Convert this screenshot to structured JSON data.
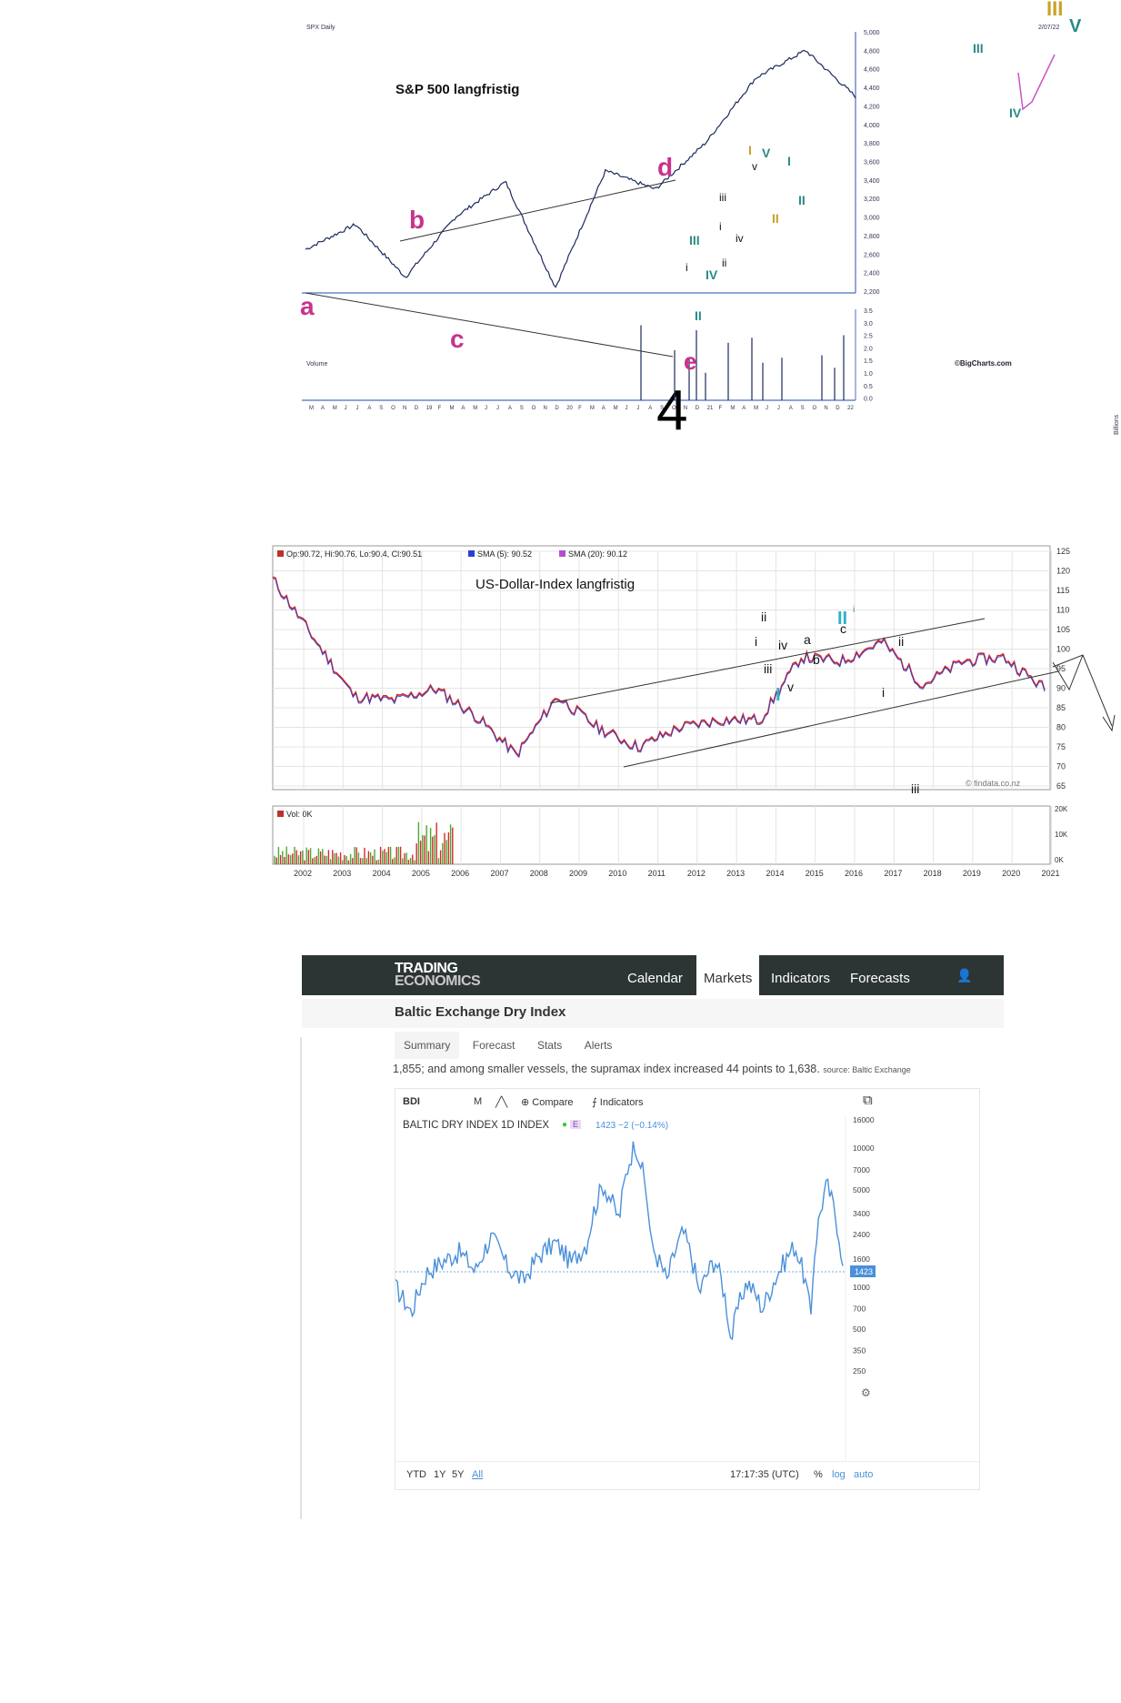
{
  "spx": {
    "header_left": "SPX Daily",
    "title": "S&P 500 langfristig",
    "date_label": "2/07/22",
    "volume_label": "Volume",
    "credit": "©BigCharts.com",
    "volume_unit": "Billions",
    "big_number": "4",
    "corner_labels": [
      "III",
      "V"
    ],
    "y_ticks": [
      "5,000",
      "4,800",
      "4,600",
      "4,400",
      "4,200",
      "4,000",
      "3,800",
      "3,600",
      "3,400",
      "3,200",
      "3,000",
      "2,800",
      "2,600",
      "2,400",
      "2,200"
    ],
    "vol_ticks": [
      "3.5",
      "3.0",
      "2.5",
      "2.0",
      "1.5",
      "1.0",
      "0.5",
      "0.0"
    ],
    "x_ticks": [
      "M",
      "A",
      "M",
      "J",
      "J",
      "A",
      "S",
      "O",
      "N",
      "D",
      "19",
      "F",
      "M",
      "A",
      "M",
      "J",
      "J",
      "A",
      "S",
      "O",
      "N",
      "D",
      "20",
      "F",
      "M",
      "A",
      "M",
      "J",
      "J",
      "A",
      "S",
      "O",
      "N",
      "D",
      "21",
      "F",
      "M",
      "A",
      "M",
      "J",
      "J",
      "A",
      "S",
      "O",
      "N",
      "D",
      "22"
    ],
    "wave_labels": {
      "a": "a",
      "b": "b",
      "c": "c",
      "d": "d",
      "e": "e",
      "I": "I",
      "II": "II",
      "III": "III",
      "IV": "IV",
      "V": "V",
      "i": "i",
      "ii": "ii",
      "iii": "iii",
      "iv": "iv",
      "v": "v",
      "w_i": "i",
      "w_ii": "ii",
      "w_iii": "iii",
      "w_iv": "iv",
      "w_v": "v",
      "g_I": "I",
      "g_II": "II"
    }
  },
  "usd": {
    "legend": [
      "Op:90.72, Hi:90.76, Lo:90.4, Cl:90.51",
      "SMA (5): 90.52",
      "SMA (20): 90.12"
    ],
    "title": "US-Dollar-Index   langfristig",
    "vol_label": "Vol: 0K",
    "credit": "© findata.co.nz",
    "y_ticks": [
      "125",
      "120",
      "115",
      "110",
      "105",
      "100",
      "95",
      "90",
      "85",
      "80",
      "75",
      "70",
      "65"
    ],
    "vol_ticks": [
      "20K",
      "10K",
      "0K"
    ],
    "x_ticks": [
      "2002",
      "2003",
      "2004",
      "2005",
      "2006",
      "2007",
      "2008",
      "2009",
      "2010",
      "2011",
      "2012",
      "2013",
      "2014",
      "2015",
      "2016",
      "2017",
      "2018",
      "2019",
      "2020",
      "2021"
    ],
    "wave_labels": {
      "ii": "ii",
      "i": "i",
      "iv": "iv",
      "iii": "iii",
      "v": "v",
      "a": "a",
      "b": "b",
      "c": "c",
      "II": "II",
      "I": "I",
      "ii_r": "ii",
      "i_r": "i",
      "iii_r": "iii",
      "i_small": "i"
    },
    "colors": {
      "sma5": "#2b3fd6",
      "sma20": "#b04fd0",
      "price": "#d22a2a"
    }
  },
  "te": {
    "logo_top": "TRADING",
    "logo_bottom": "ECONOMICS",
    "menu": [
      "Calendar",
      "Markets",
      "Indicators",
      "Forecasts"
    ],
    "active_menu": "Markets",
    "page_title": "Baltic Exchange Dry Index",
    "tabs": [
      "Summary",
      "Forecast",
      "Stats",
      "Alerts"
    ],
    "description": "1,855; and among smaller vessels, the supramax index increased 44 points to 1,638.",
    "source": "source: Baltic Exchange",
    "toolbar": {
      "symbol": "BDI",
      "interval": "M",
      "compare": "Compare",
      "indicators": "Indicators"
    },
    "series_title": "BALTIC DRY INDEX  1D  INDEX",
    "badge": "E",
    "last_value": "1423  −2 (−0.14%)",
    "price_tag": "1423",
    "y_ticks": [
      "16000",
      "10000",
      "7000",
      "5000",
      "3400",
      "2400",
      "1600",
      "1000",
      "700",
      "500",
      "350",
      "250"
    ],
    "ranges": [
      "YTD",
      "1Y",
      "5Y",
      "All"
    ],
    "time": "17:17:35 (UTC)",
    "scale_options": [
      "%",
      "log",
      "auto"
    ],
    "line_color": "#4a90d9"
  },
  "chart_data": [
    {
      "type": "line",
      "title": "S&P 500 langfristig",
      "ylim": [
        2200,
        5000
      ],
      "x": [
        "2018-03",
        "2018-09",
        "2018-12",
        "2019-07",
        "2020-02",
        "2020-03",
        "2020-08",
        "2020-10",
        "2021-01",
        "2021-09",
        "2021-12",
        "2022-02"
      ],
      "values": [
        2650,
        2920,
        2350,
        3000,
        3380,
        2240,
        3500,
        3300,
        3800,
        4500,
        4800,
        4300
      ]
    },
    {
      "type": "line",
      "title": "US-Dollar-Index   langfristig",
      "ylim": [
        65,
        125
      ],
      "x": [
        "2002",
        "2003",
        "2004",
        "2005",
        "2006",
        "2007",
        "2008",
        "2009",
        "2010",
        "2011",
        "2012",
        "2013",
        "2014",
        "2015",
        "2016",
        "2017",
        "2018",
        "2019",
        "2020",
        "2021"
      ],
      "values": [
        118,
        103,
        88,
        87,
        90,
        83,
        73,
        88,
        80,
        75,
        80,
        82,
        82,
        98,
        97,
        102,
        91,
        97,
        98,
        90
      ]
    },
    {
      "type": "line",
      "title": "BALTIC DRY INDEX  1D  INDEX",
      "ylim": [
        250,
        16000
      ],
      "values": [
        1000,
        650,
        1300,
        1550,
        1800,
        1300,
        2300,
        1400,
        1100,
        1700,
        2100,
        1500,
        2100,
        5500,
        3000,
        11000,
        2000,
        1100,
        2500,
        900,
        1600,
        400,
        1100,
        700,
        1300,
        2000,
        600,
        5500,
        1423
      ]
    }
  ]
}
